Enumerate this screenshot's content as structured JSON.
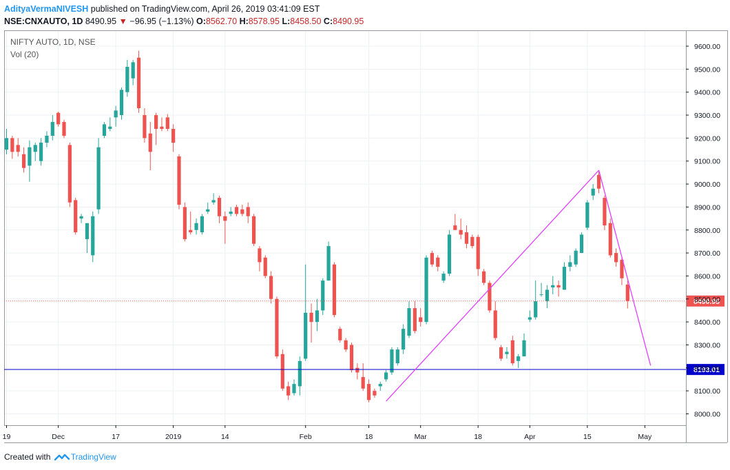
{
  "header": {
    "author": "AdityaVermaNIVESH",
    "published_text": " published on TradingView.com, April 26, 2019 03:41:09 EST",
    "symbol": "NSE:CNXAUTO, 1D",
    "last": "8490.95",
    "change": "−96.95 (−1.13%)",
    "o_label": "O:",
    "o_value": "8562.70",
    "h_label": "H:",
    "h_value": "8578.95",
    "l_label": "L:",
    "l_value": "8458.50",
    "c_label": "C:",
    "c_value": "8490.95"
  },
  "legend": {
    "title": "NIFTY AUTO, 1D, NSE",
    "volume": "Vol (20)"
  },
  "footer": {
    "created_with": "Created with",
    "brand": "TradingView"
  },
  "colors": {
    "up": "#26a69a",
    "down": "#ef5350",
    "trendline": "#e040fb",
    "hline": "#0000cc",
    "last_price": "#ef5350"
  },
  "chart_data": {
    "type": "candlestick",
    "y_axis": {
      "range": [
        7960,
        9680
      ],
      "ticks": [
        8000,
        8100,
        8200,
        8300,
        8400,
        8500,
        8600,
        8700,
        8800,
        8900,
        9000,
        9100,
        9200,
        9300,
        9400,
        9500,
        9600
      ]
    },
    "x_axis": {
      "tick_labels": [
        {
          "label": "19",
          "bar": 0
        },
        {
          "label": "Dec",
          "bar": 9
        },
        {
          "label": "17",
          "bar": 19
        },
        {
          "label": "2019",
          "bar": 29
        },
        {
          "label": "14",
          "bar": 38
        },
        {
          "label": "Feb",
          "bar": 52
        },
        {
          "label": "18",
          "bar": 63
        },
        {
          "label": "Mar",
          "bar": 72
        },
        {
          "label": "18",
          "bar": 82
        },
        {
          "label": "Apr",
          "bar": 91
        },
        {
          "label": "15",
          "bar": 101
        },
        {
          "label": "May",
          "bar": 111
        }
      ]
    },
    "last_price_label": "8490.95",
    "horizontal_line": {
      "value": 8193.01,
      "label": "8193.01"
    },
    "trendlines": [
      {
        "from": {
          "bar": 66,
          "value": 8055
        },
        "to": {
          "bar": 103,
          "value": 9060
        }
      },
      {
        "from": {
          "bar": 103,
          "value": 9060
        },
        "to": {
          "bar": 112,
          "value": 8210
        }
      }
    ],
    "candles": [
      {
        "o": 9150,
        "h": 9240,
        "l": 9130,
        "c": 9200
      },
      {
        "o": 9200,
        "h": 9210,
        "l": 9110,
        "c": 9140
      },
      {
        "o": 9170,
        "h": 9200,
        "l": 9120,
        "c": 9140
      },
      {
        "o": 9130,
        "h": 9160,
        "l": 9050,
        "c": 9070
      },
      {
        "o": 9080,
        "h": 9190,
        "l": 9010,
        "c": 9160
      },
      {
        "o": 9140,
        "h": 9180,
        "l": 9100,
        "c": 9170
      },
      {
        "o": 9100,
        "h": 9200,
        "l": 9080,
        "c": 9180
      },
      {
        "o": 9180,
        "h": 9230,
        "l": 9160,
        "c": 9210
      },
      {
        "o": 9210,
        "h": 9300,
        "l": 9190,
        "c": 9270
      },
      {
        "o": 9310,
        "h": 9315,
        "l": 9250,
        "c": 9260
      },
      {
        "o": 9270,
        "h": 9280,
        "l": 9200,
        "c": 9210
      },
      {
        "o": 9170,
        "h": 9180,
        "l": 8900,
        "c": 8920
      },
      {
        "o": 8930,
        "h": 8940,
        "l": 8780,
        "c": 8790
      },
      {
        "o": 8850,
        "h": 8870,
        "l": 8830,
        "c": 8860
      },
      {
        "o": 8760,
        "h": 8820,
        "l": 8700,
        "c": 8830
      },
      {
        "o": 8690,
        "h": 8880,
        "l": 8660,
        "c": 8860
      },
      {
        "o": 8890,
        "h": 9200,
        "l": 8870,
        "c": 9160
      },
      {
        "o": 9210,
        "h": 9270,
        "l": 9200,
        "c": 9260
      },
      {
        "o": 9240,
        "h": 9290,
        "l": 9230,
        "c": 9250
      },
      {
        "o": 9290,
        "h": 9340,
        "l": 9250,
        "c": 9320
      },
      {
        "o": 9300,
        "h": 9420,
        "l": 9280,
        "c": 9410
      },
      {
        "o": 9400,
        "h": 9540,
        "l": 9380,
        "c": 9510
      },
      {
        "o": 9460,
        "h": 9540,
        "l": 9430,
        "c": 9530
      },
      {
        "o": 9550,
        "h": 9580,
        "l": 9310,
        "c": 9330
      },
      {
        "o": 9300,
        "h": 9330,
        "l": 9180,
        "c": 9200
      },
      {
        "o": 9220,
        "h": 9270,
        "l": 9060,
        "c": 9140
      },
      {
        "o": 9300,
        "h": 9310,
        "l": 9170,
        "c": 9240
      },
      {
        "o": 9250,
        "h": 9290,
        "l": 9230,
        "c": 9240
      },
      {
        "o": 9290,
        "h": 9305,
        "l": 9230,
        "c": 9240
      },
      {
        "o": 9240,
        "h": 9260,
        "l": 9140,
        "c": 9180
      },
      {
        "o": 9120,
        "h": 9130,
        "l": 8890,
        "c": 8910
      },
      {
        "o": 8900,
        "h": 8920,
        "l": 8750,
        "c": 8760
      },
      {
        "o": 8800,
        "h": 8880,
        "l": 8780,
        "c": 8790
      },
      {
        "o": 8800,
        "h": 8850,
        "l": 8780,
        "c": 8830
      },
      {
        "o": 8790,
        "h": 8870,
        "l": 8780,
        "c": 8860
      },
      {
        "o": 8880,
        "h": 8920,
        "l": 8870,
        "c": 8890
      },
      {
        "o": 8920,
        "h": 8960,
        "l": 8910,
        "c": 8930
      },
      {
        "o": 8940,
        "h": 8950,
        "l": 8830,
        "c": 8860
      },
      {
        "o": 8860,
        "h": 8880,
        "l": 8740,
        "c": 8840
      },
      {
        "o": 8870,
        "h": 8900,
        "l": 8860,
        "c": 8880
      },
      {
        "o": 8900,
        "h": 8910,
        "l": 8860,
        "c": 8870
      },
      {
        "o": 8890,
        "h": 8910,
        "l": 8860,
        "c": 8870
      },
      {
        "o": 8900,
        "h": 8920,
        "l": 8830,
        "c": 8860
      },
      {
        "o": 8860,
        "h": 8870,
        "l": 8730,
        "c": 8740
      },
      {
        "o": 8720,
        "h": 8730,
        "l": 8620,
        "c": 8660
      },
      {
        "o": 8680,
        "h": 8690,
        "l": 8590,
        "c": 8600
      },
      {
        "o": 8600,
        "h": 8620,
        "l": 8480,
        "c": 8500
      },
      {
        "o": 8500,
        "h": 8510,
        "l": 8240,
        "c": 8250
      },
      {
        "o": 8260,
        "h": 8280,
        "l": 8100,
        "c": 8110
      },
      {
        "o": 8120,
        "h": 8140,
        "l": 8060,
        "c": 8080
      },
      {
        "o": 8090,
        "h": 8150,
        "l": 8080,
        "c": 8130
      },
      {
        "o": 8120,
        "h": 8250,
        "l": 8080,
        "c": 8230
      },
      {
        "o": 8240,
        "h": 8650,
        "l": 8230,
        "c": 8440
      },
      {
        "o": 8440,
        "h": 8480,
        "l": 8310,
        "c": 8400
      },
      {
        "o": 8400,
        "h": 8500,
        "l": 8360,
        "c": 8450
      },
      {
        "o": 8450,
        "h": 8590,
        "l": 8430,
        "c": 8580
      },
      {
        "o": 8580,
        "h": 8750,
        "l": 8580,
        "c": 8730
      },
      {
        "o": 8650,
        "h": 8660,
        "l": 8420,
        "c": 8430
      },
      {
        "o": 8370,
        "h": 8380,
        "l": 8310,
        "c": 8320
      },
      {
        "o": 8320,
        "h": 8330,
        "l": 8270,
        "c": 8280
      },
      {
        "o": 8300,
        "h": 8310,
        "l": 8180,
        "c": 8190
      },
      {
        "o": 8200,
        "h": 8220,
        "l": 8150,
        "c": 8180
      },
      {
        "o": 8160,
        "h": 8220,
        "l": 8100,
        "c": 8110
      },
      {
        "o": 8130,
        "h": 8150,
        "l": 8050,
        "c": 8060
      },
      {
        "o": 8100,
        "h": 8110,
        "l": 8070,
        "c": 8080
      },
      {
        "o": 8120,
        "h": 8140,
        "l": 8100,
        "c": 8130
      },
      {
        "o": 8150,
        "h": 8190,
        "l": 8140,
        "c": 8180
      },
      {
        "o": 8180,
        "h": 8290,
        "l": 8170,
        "c": 8280
      },
      {
        "o": 8220,
        "h": 8290,
        "l": 8210,
        "c": 8280
      },
      {
        "o": 8280,
        "h": 8390,
        "l": 8260,
        "c": 8370
      },
      {
        "o": 8340,
        "h": 8490,
        "l": 8330,
        "c": 8460
      },
      {
        "o": 8460,
        "h": 8490,
        "l": 8350,
        "c": 8360
      },
      {
        "o": 8420,
        "h": 8460,
        "l": 8380,
        "c": 8400
      },
      {
        "o": 8400,
        "h": 8690,
        "l": 8390,
        "c": 8680
      },
      {
        "o": 8700,
        "h": 8710,
        "l": 8640,
        "c": 8650
      },
      {
        "o": 8680,
        "h": 8690,
        "l": 8620,
        "c": 8640
      },
      {
        "o": 8580,
        "h": 8620,
        "l": 8570,
        "c": 8610
      },
      {
        "o": 8610,
        "h": 8800,
        "l": 8600,
        "c": 8780
      },
      {
        "o": 8820,
        "h": 8870,
        "l": 8800,
        "c": 8800
      },
      {
        "o": 8800,
        "h": 8850,
        "l": 8760,
        "c": 8780
      },
      {
        "o": 8790,
        "h": 8820,
        "l": 8720,
        "c": 8740
      },
      {
        "o": 8770,
        "h": 8780,
        "l": 8720,
        "c": 8730
      },
      {
        "o": 8770,
        "h": 8780,
        "l": 8600,
        "c": 8630
      },
      {
        "o": 8620,
        "h": 8630,
        "l": 8560,
        "c": 8570
      },
      {
        "o": 8570,
        "h": 8580,
        "l": 8440,
        "c": 8450
      },
      {
        "o": 8450,
        "h": 8490,
        "l": 8320,
        "c": 8330
      },
      {
        "o": 8290,
        "h": 8300,
        "l": 8230,
        "c": 8240
      },
      {
        "o": 8260,
        "h": 8290,
        "l": 8240,
        "c": 8270
      },
      {
        "o": 8320,
        "h": 8340,
        "l": 8210,
        "c": 8220
      },
      {
        "o": 8230,
        "h": 8260,
        "l": 8200,
        "c": 8250
      },
      {
        "o": 8250,
        "h": 8350,
        "l": 8250,
        "c": 8320
      },
      {
        "o": 8410,
        "h": 8450,
        "l": 8400,
        "c": 8420
      },
      {
        "o": 8420,
        "h": 8580,
        "l": 8410,
        "c": 8490
      },
      {
        "o": 8520,
        "h": 8570,
        "l": 8510,
        "c": 8520
      },
      {
        "o": 8490,
        "h": 8560,
        "l": 8460,
        "c": 8540
      },
      {
        "o": 8550,
        "h": 8600,
        "l": 8520,
        "c": 8560
      },
      {
        "o": 8560,
        "h": 8580,
        "l": 8510,
        "c": 8550
      },
      {
        "o": 8540,
        "h": 8660,
        "l": 8540,
        "c": 8640
      },
      {
        "o": 8640,
        "h": 8690,
        "l": 8620,
        "c": 8660
      },
      {
        "o": 8650,
        "h": 8720,
        "l": 8640,
        "c": 8710
      },
      {
        "o": 8700,
        "h": 8790,
        "l": 8700,
        "c": 8780
      },
      {
        "o": 8810,
        "h": 8930,
        "l": 8800,
        "c": 8920
      },
      {
        "o": 8950,
        "h": 9000,
        "l": 8930,
        "c": 8980
      },
      {
        "o": 9040,
        "h": 9060,
        "l": 8960,
        "c": 8980
      },
      {
        "o": 8940,
        "h": 8950,
        "l": 8800,
        "c": 8820
      },
      {
        "o": 8830,
        "h": 8850,
        "l": 8680,
        "c": 8690
      },
      {
        "o": 8700,
        "h": 8720,
        "l": 8640,
        "c": 8660
      },
      {
        "o": 8670,
        "h": 8680,
        "l": 8560,
        "c": 8590
      },
      {
        "o": 8562.7,
        "h": 8578.95,
        "l": 8458.5,
        "c": 8490.95
      }
    ]
  }
}
